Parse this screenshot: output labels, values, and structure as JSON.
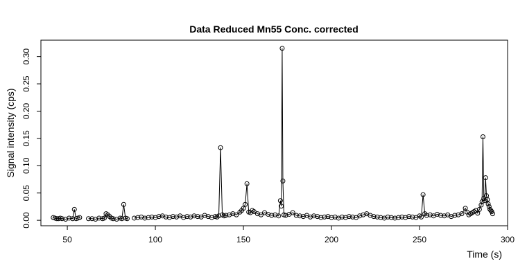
{
  "chart_data": {
    "type": "line",
    "title": "Data Reduced Mn55 Conc. corrected",
    "xlabel": "Time (s)",
    "ylabel": "Signal intensity (cps)",
    "xlim": [
      35,
      300
    ],
    "ylim": [
      -0.01,
      0.33
    ],
    "xticks": [
      50,
      100,
      150,
      200,
      250,
      300
    ],
    "yticks": [
      0.0,
      0.05,
      0.1,
      0.15,
      0.2,
      0.25,
      0.3
    ],
    "xtick_labels": [
      "50",
      "100",
      "150",
      "200",
      "250",
      "300"
    ],
    "ytick_labels": [
      "0.00",
      "0.05",
      "0.10",
      "0.15",
      "0.20",
      "0.25",
      "0.30"
    ],
    "grid": false,
    "legend": "none",
    "series_color": "#000000",
    "segments": [
      {
        "x": [
          42,
          43,
          44,
          45,
          46,
          47,
          49,
          51,
          53,
          54,
          55,
          56,
          57
        ],
        "y": [
          0.005,
          0.004,
          0.003,
          0.003,
          0.004,
          0.003,
          0.002,
          0.004,
          0.003,
          0.02,
          0.003,
          0.004,
          0.005
        ]
      },
      {
        "x": [
          62,
          64,
          66,
          68,
          70,
          71,
          72,
          73,
          74,
          75,
          76,
          78,
          80,
          81,
          82,
          83,
          84
        ],
        "y": [
          0.003,
          0.003,
          0.002,
          0.004,
          0.003,
          0.004,
          0.012,
          0.01,
          0.007,
          0.004,
          0.003,
          0.002,
          0.004,
          0.003,
          0.029,
          0.004,
          0.003
        ]
      },
      {
        "x": [
          88,
          90,
          92,
          94,
          96,
          98,
          100,
          102,
          104,
          106,
          108,
          110,
          112,
          114,
          116,
          118,
          120,
          122,
          124,
          126,
          128,
          130,
          132,
          134,
          135,
          136,
          137,
          138,
          139,
          140,
          142,
          144,
          146,
          148,
          149,
          150,
          151,
          152,
          153,
          154,
          155,
          156,
          158,
          160,
          162,
          164,
          166,
          168,
          170,
          171,
          171.5,
          172,
          172.4,
          173,
          174,
          176,
          178,
          180,
          182,
          184,
          186,
          188,
          190,
          192,
          194,
          196,
          198,
          200,
          202,
          204,
          206,
          208,
          210,
          212,
          214,
          216,
          218,
          220,
          222,
          224,
          226,
          228,
          230,
          232,
          234,
          236,
          238,
          240,
          242,
          244,
          246,
          248,
          250,
          251,
          252,
          253,
          254,
          256,
          258,
          260,
          262,
          264,
          266,
          268,
          270,
          272,
          274,
          276,
          277,
          278,
          279,
          280,
          281,
          282,
          283,
          284,
          285,
          285.5,
          286,
          286.5,
          287,
          287.5,
          288,
          288.5,
          289,
          289.5,
          290,
          290.5,
          291,
          291.5
        ],
        "y": [
          0.004,
          0.005,
          0.006,
          0.004,
          0.005,
          0.006,
          0.005,
          0.007,
          0.008,
          0.006,
          0.005,
          0.007,
          0.006,
          0.008,
          0.005,
          0.007,
          0.006,
          0.008,
          0.007,
          0.006,
          0.009,
          0.007,
          0.005,
          0.007,
          0.006,
          0.008,
          0.133,
          0.01,
          0.008,
          0.009,
          0.01,
          0.012,
          0.01,
          0.015,
          0.018,
          0.022,
          0.029,
          0.067,
          0.015,
          0.014,
          0.018,
          0.016,
          0.012,
          0.01,
          0.014,
          0.011,
          0.009,
          0.01,
          0.008,
          0.036,
          0.026,
          0.315,
          0.072,
          0.01,
          0.009,
          0.011,
          0.014,
          0.009,
          0.008,
          0.007,
          0.009,
          0.006,
          0.008,
          0.007,
          0.005,
          0.006,
          0.007,
          0.005,
          0.006,
          0.004,
          0.006,
          0.005,
          0.007,
          0.006,
          0.005,
          0.008,
          0.01,
          0.012,
          0.009,
          0.007,
          0.006,
          0.005,
          0.004,
          0.006,
          0.005,
          0.004,
          0.005,
          0.006,
          0.005,
          0.007,
          0.006,
          0.005,
          0.008,
          0.006,
          0.047,
          0.012,
          0.009,
          0.01,
          0.008,
          0.011,
          0.009,
          0.008,
          0.01,
          0.007,
          0.009,
          0.01,
          0.012,
          0.022,
          0.015,
          0.01,
          0.012,
          0.014,
          0.016,
          0.018,
          0.013,
          0.02,
          0.028,
          0.034,
          0.153,
          0.04,
          0.036,
          0.078,
          0.045,
          0.038,
          0.03,
          0.025,
          0.02,
          0.018,
          0.016,
          0.012
        ]
      }
    ]
  }
}
